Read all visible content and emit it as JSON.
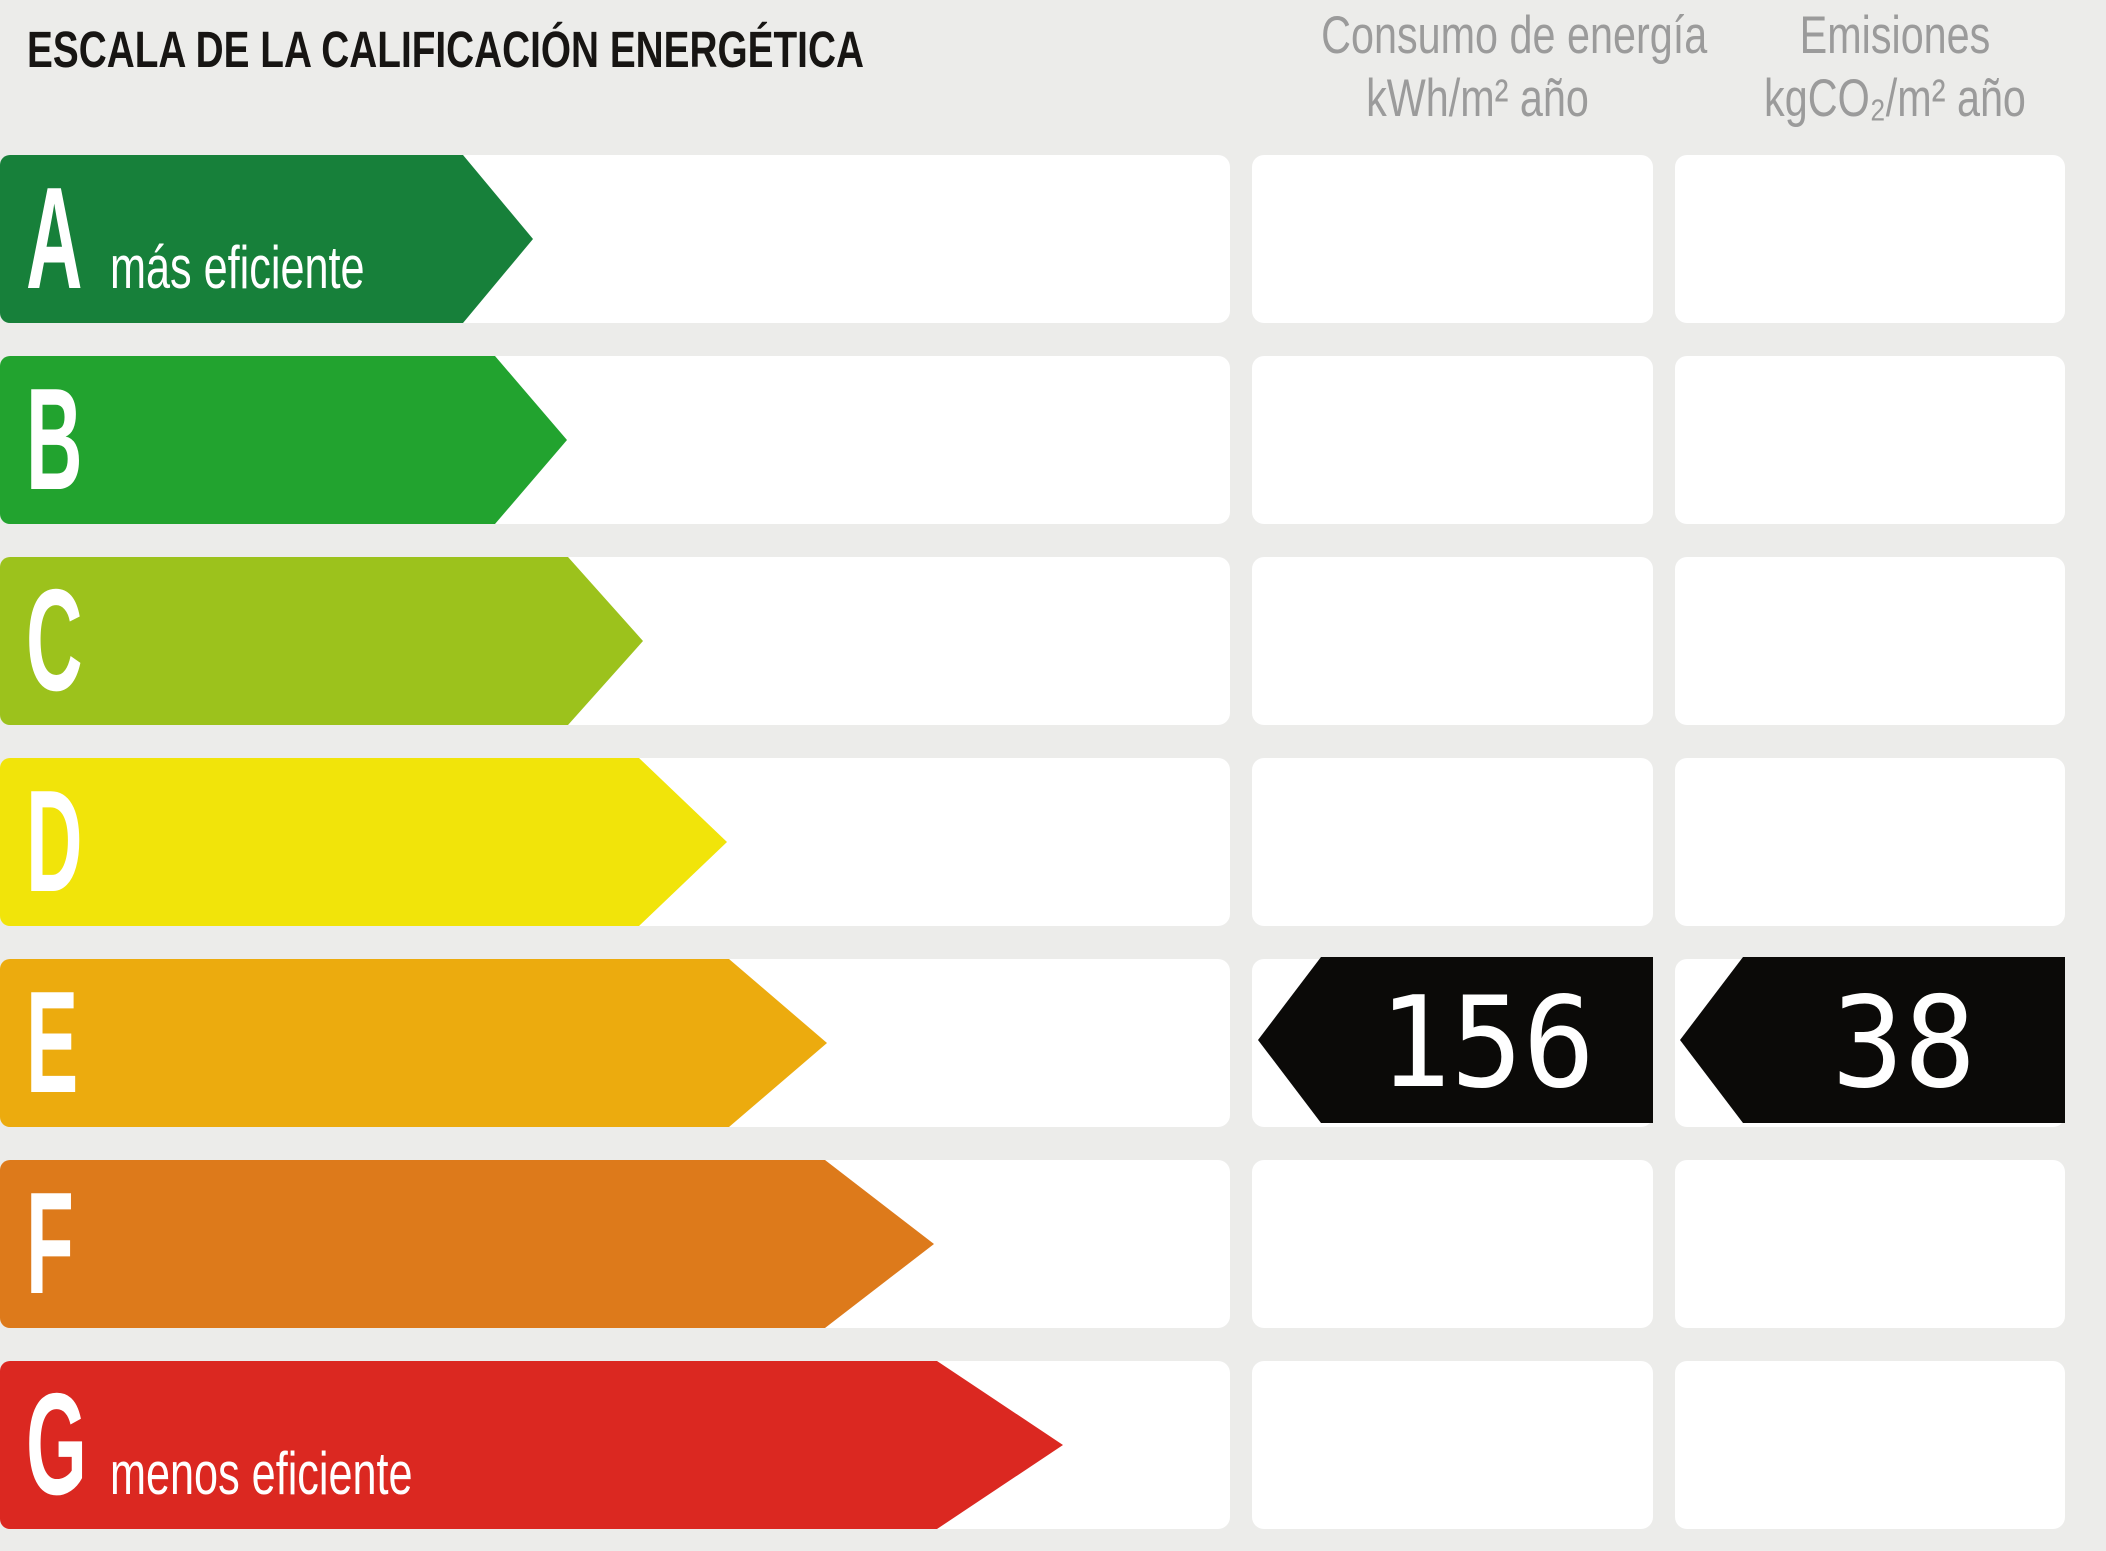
{
  "title": "ESCALA DE LA CALIFICACIÓN ENERGÉTICA",
  "columns": {
    "consumption": {
      "line1": "Consumo de energía",
      "line2": "kWh/m² año"
    },
    "emissions": {
      "line1": "Emisiones",
      "line2": "kgCO₂/m² año"
    }
  },
  "scale": {
    "rows": [
      {
        "letter": "A",
        "label": "más eficiente",
        "color": "#17803A"
      },
      {
        "letter": "B",
        "label": "",
        "color": "#22A32F"
      },
      {
        "letter": "C",
        "label": "",
        "color": "#9CC21C"
      },
      {
        "letter": "D",
        "label": "",
        "color": "#F1E40A"
      },
      {
        "letter": "E",
        "label": "",
        "color": "#ECAB0E"
      },
      {
        "letter": "F",
        "label": "",
        "color": "#DD7A1B"
      },
      {
        "letter": "G",
        "label": "menos eficiente",
        "color": "#DB2821"
      }
    ]
  },
  "rating": {
    "grade": "E",
    "consumption_value": "156",
    "emissions_value": "38",
    "badge_color": "#0B0A08",
    "badge_text_color": "#FFFFFF"
  },
  "colors": {
    "background": "#ECECEA",
    "cell": "#FFFFFF",
    "header_text": "#9B9B9B",
    "title_text": "#171513",
    "arrow_text": "#FFFFFF"
  },
  "chart_data": {
    "type": "bar",
    "title": "ESCALA DE LA CALIFICACIÓN ENERGÉTICA",
    "categories": [
      "A",
      "B",
      "C",
      "D",
      "E",
      "F",
      "G"
    ],
    "values": [
      533,
      567,
      643,
      727,
      827,
      934,
      1063
    ],
    "series": [
      {
        "name": "Consumo de energía kWh/m² año",
        "rated_category": "E",
        "value": 156
      },
      {
        "name": "Emisiones kgCO₂/m² año",
        "rated_category": "E",
        "value": 38
      }
    ],
    "bar_colors": [
      "#17803A",
      "#22A32F",
      "#9CC21C",
      "#F1E40A",
      "#ECAB0E",
      "#DD7A1B",
      "#DB2821"
    ],
    "annotations": [
      "A = más eficiente",
      "G = menos eficiente",
      "valores en fila E: 156 kWh/m² año, 38 kgCO₂/m² año"
    ],
    "xlabel": "",
    "ylabel": "",
    "legend": false,
    "note": "bar lengths are fixed label-scale lengths in px, not data values"
  }
}
